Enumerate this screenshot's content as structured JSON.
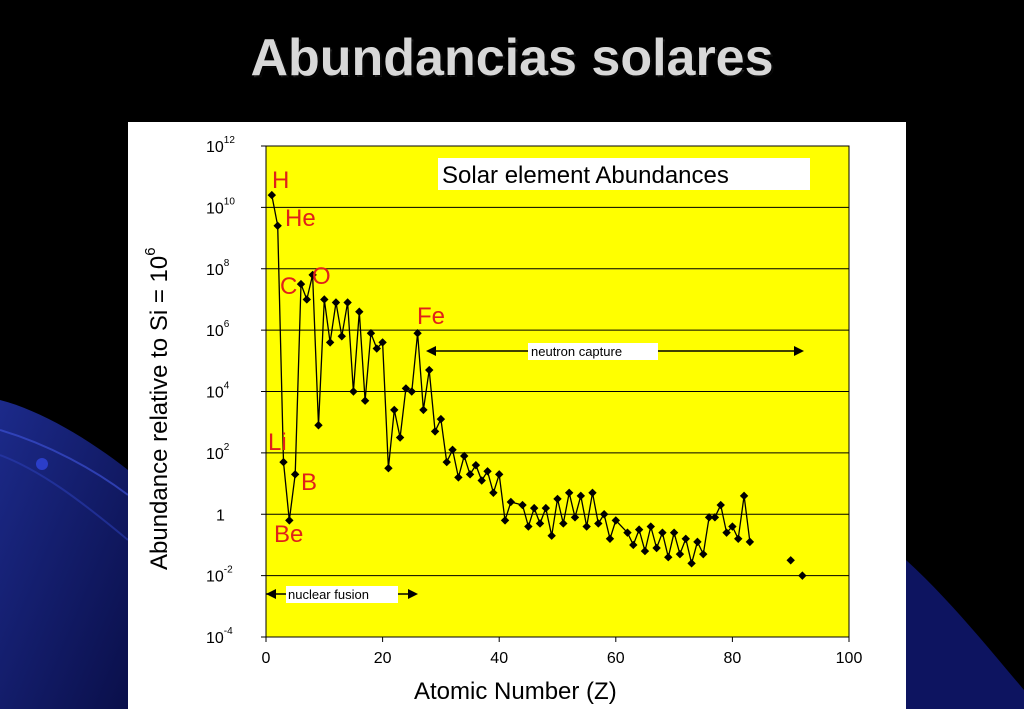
{
  "slide": {
    "title": "Abundancias solares"
  },
  "chart_data": {
    "type": "scatter",
    "title": "Solar element Abundances",
    "xlabel": "Atomic Number (Z)",
    "ylabel_main": "Abundance relative to Si = 10",
    "ylabel_exp": "6",
    "xlim": [
      0,
      100
    ],
    "ylim_log10": [
      -4,
      12
    ],
    "y_scale": "log",
    "grid": "horizontal",
    "plot_bg": "#ffff00",
    "marker_color": "#000000",
    "label_color": "#e0201a",
    "x_ticks": [
      "0",
      "20",
      "40",
      "60",
      "80",
      "100"
    ],
    "y_ticks": [
      {
        "base": "10",
        "exp": "12"
      },
      {
        "base": "10",
        "exp": "10"
      },
      {
        "base": "10",
        "exp": "8"
      },
      {
        "base": "10",
        "exp": "6"
      },
      {
        "base": "10",
        "exp": "4"
      },
      {
        "base": "10",
        "exp": "2"
      },
      {
        "base": "1",
        "exp": ""
      },
      {
        "base": "10",
        "exp": "-2"
      },
      {
        "base": "10",
        "exp": "-4"
      }
    ],
    "element_labels": [
      "H",
      "He",
      "Li",
      "Be",
      "B",
      "C",
      "O",
      "Fe"
    ],
    "annotations": {
      "neutron_capture": "neutron capture",
      "nuclear_fusion": "nuclear fusion"
    },
    "series": [
      {
        "points": [
          [
            1,
            10.4
          ],
          [
            2,
            9.4
          ],
          [
            3,
            1.7
          ],
          [
            4,
            -0.2
          ],
          [
            5,
            1.3
          ],
          [
            6,
            7.5
          ],
          [
            7,
            7.0
          ],
          [
            8,
            7.8
          ],
          [
            9,
            2.9
          ],
          [
            10,
            7.0
          ],
          [
            11,
            5.6
          ],
          [
            12,
            6.9
          ],
          [
            13,
            5.8
          ],
          [
            14,
            6.9
          ],
          [
            15,
            4.0
          ],
          [
            16,
            6.6
          ],
          [
            17,
            3.7
          ],
          [
            18,
            5.9
          ],
          [
            19,
            5.4
          ],
          [
            20,
            5.6
          ],
          [
            21,
            1.5
          ],
          [
            22,
            3.4
          ],
          [
            23,
            2.5
          ],
          [
            24,
            4.1
          ],
          [
            25,
            4.0
          ],
          [
            26,
            5.9
          ],
          [
            27,
            3.4
          ],
          [
            28,
            4.7
          ],
          [
            29,
            2.7
          ],
          [
            30,
            3.1
          ],
          [
            31,
            1.7
          ],
          [
            32,
            2.1
          ],
          [
            33,
            1.2
          ],
          [
            34,
            1.9
          ],
          [
            35,
            1.3
          ],
          [
            36,
            1.6
          ],
          [
            37,
            1.1
          ],
          [
            38,
            1.4
          ],
          [
            39,
            0.7
          ],
          [
            40,
            1.3
          ],
          [
            41,
            -0.2
          ],
          [
            42,
            0.4
          ],
          [
            44,
            0.3
          ],
          [
            45,
            -0.4
          ],
          [
            46,
            0.2
          ],
          [
            47,
            -0.3
          ],
          [
            48,
            0.2
          ],
          [
            49,
            -0.7
          ],
          [
            50,
            0.5
          ],
          [
            51,
            -0.3
          ],
          [
            52,
            0.7
          ],
          [
            53,
            -0.1
          ],
          [
            54,
            0.6
          ],
          [
            55,
            -0.4
          ],
          [
            56,
            0.7
          ],
          [
            57,
            -0.3
          ],
          [
            58,
            0.0
          ],
          [
            59,
            -0.8
          ],
          [
            60,
            -0.2
          ],
          [
            62,
            -0.6
          ],
          [
            63,
            -1.0
          ],
          [
            64,
            -0.5
          ],
          [
            65,
            -1.2
          ],
          [
            66,
            -0.4
          ],
          [
            67,
            -1.1
          ],
          [
            68,
            -0.6
          ],
          [
            69,
            -1.4
          ],
          [
            70,
            -0.6
          ],
          [
            71,
            -1.3
          ],
          [
            72,
            -0.8
          ],
          [
            73,
            -1.6
          ],
          [
            74,
            -0.9
          ],
          [
            75,
            -1.3
          ],
          [
            76,
            -0.1
          ],
          [
            77,
            -0.1
          ],
          [
            78,
            0.3
          ],
          [
            79,
            -0.6
          ],
          [
            80,
            -0.4
          ],
          [
            81,
            -0.8
          ],
          [
            82,
            0.6
          ],
          [
            83,
            -0.9
          ],
          [
            90,
            -1.5
          ],
          [
            92,
            -2.0
          ]
        ]
      }
    ]
  }
}
